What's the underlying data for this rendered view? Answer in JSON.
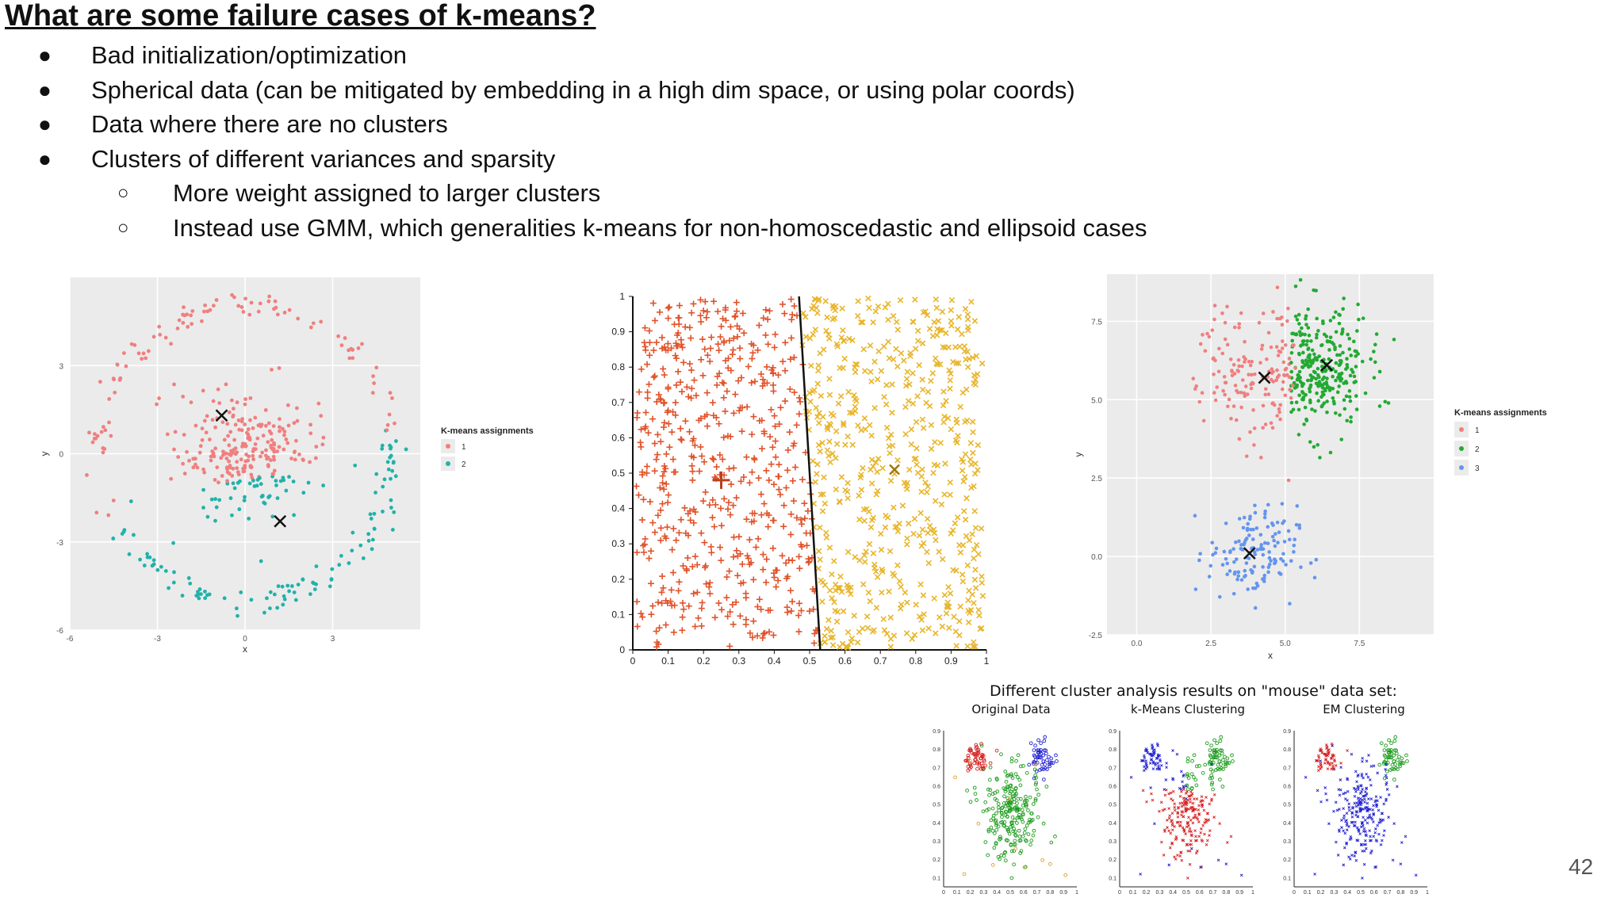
{
  "slide": {
    "title": "What are some failure cases of k-means?",
    "bullets": [
      {
        "level": 1,
        "text": "Bad initialization/optimization"
      },
      {
        "level": 1,
        "text": "Spherical data (can be mitigated by embedding in a high dim space, or using polar coords)"
      },
      {
        "level": 1,
        "text": "Data where there are no clusters"
      },
      {
        "level": 1,
        "text": "Clusters of different variances and sparsity"
      },
      {
        "level": 2,
        "text": "More weight assigned to larger clusters"
      },
      {
        "level": 2,
        "text": "Instead use GMM, which generalities k-means for non-homoscedastic and ellipsoid cases"
      }
    ],
    "page_number": "42"
  },
  "chart_data": [
    {
      "type": "scatter",
      "panel": "rings",
      "xlabel": "x",
      "ylabel": "y",
      "xlim": [
        -6,
        6
      ],
      "ylim": [
        -6,
        6
      ],
      "xticks": [
        "-6",
        "-3",
        "0",
        "3"
      ],
      "yticks": [
        "-6",
        "-3",
        "0",
        "3"
      ],
      "legend_title": "K-means assignments",
      "series": [
        {
          "name": "1",
          "color": "#f07f7f",
          "shape": "ring + inner blob (upper)"
        },
        {
          "name": "2",
          "color": "#20b2aa",
          "shape": "ring + inner blob (lower)"
        }
      ],
      "centroids": [
        [
          -0.8,
          1.3
        ],
        [
          1.2,
          -2.3
        ]
      ],
      "background": "#ebebeb",
      "grid": true
    },
    {
      "type": "scatter",
      "panel": "uniform",
      "xlim": [
        0,
        1
      ],
      "ylim": [
        0,
        1
      ],
      "xticks": [
        "0",
        "0.1",
        "0.2",
        "0.3",
        "0.4",
        "0.5",
        "0.6",
        "0.7",
        "0.8",
        "0.9",
        "1"
      ],
      "yticks": [
        "0",
        "0.1",
        "0.2",
        "0.3",
        "0.4",
        "0.5",
        "0.6",
        "0.7",
        "0.8",
        "0.9",
        "1"
      ],
      "series": [
        {
          "marker": "+",
          "color": "#e0522a",
          "centroid": [
            0.25,
            0.48
          ]
        },
        {
          "marker": "x",
          "color": "#e8b52a",
          "centroid": [
            0.74,
            0.51
          ]
        }
      ],
      "boundary": [
        [
          0.47,
          1.0
        ],
        [
          0.53,
          0.0
        ]
      ],
      "grid": false
    },
    {
      "type": "scatter",
      "panel": "variances",
      "xlabel": "x",
      "ylabel": "y",
      "xlim": [
        -1,
        10
      ],
      "ylim": [
        -2.5,
        9
      ],
      "xticks": [
        "0.0",
        "2.5",
        "5.0",
        "7.5"
      ],
      "yticks": [
        "-2.5",
        "0.0",
        "2.5",
        "5.0",
        "7.5"
      ],
      "legend_title": "K-means assignments",
      "series": [
        {
          "name": "1",
          "color": "#f07f7f",
          "centroid": [
            4.3,
            5.7
          ]
        },
        {
          "name": "2",
          "color": "#22aa33",
          "centroid": [
            6.4,
            6.1
          ]
        },
        {
          "name": "3",
          "color": "#6495ed",
          "centroid": [
            3.8,
            0.1
          ]
        }
      ],
      "background": "#ebebeb",
      "grid": true
    },
    {
      "type": "scatter",
      "panel": "mouse",
      "title": "Different cluster analysis results on \"mouse\" data set:",
      "subplots": [
        "Original Data",
        "k-Means Clustering",
        "EM Clustering"
      ],
      "xticks": [
        "0",
        "0.1",
        "0.2",
        "0.3",
        "0.4",
        "0.5",
        "0.6",
        "0.7",
        "0.8",
        "0.9",
        "1"
      ],
      "yticks": [
        "0.1",
        "0.2",
        "0.3",
        "0.4",
        "0.5",
        "0.6",
        "0.7",
        "0.8",
        "0.9"
      ],
      "xlim": [
        0,
        1
      ],
      "ylim": [
        0.05,
        0.9
      ],
      "colors": {
        "head": "#1a9a1a",
        "left_ear": "#d62020",
        "right_ear": "#2020d0"
      }
    }
  ]
}
